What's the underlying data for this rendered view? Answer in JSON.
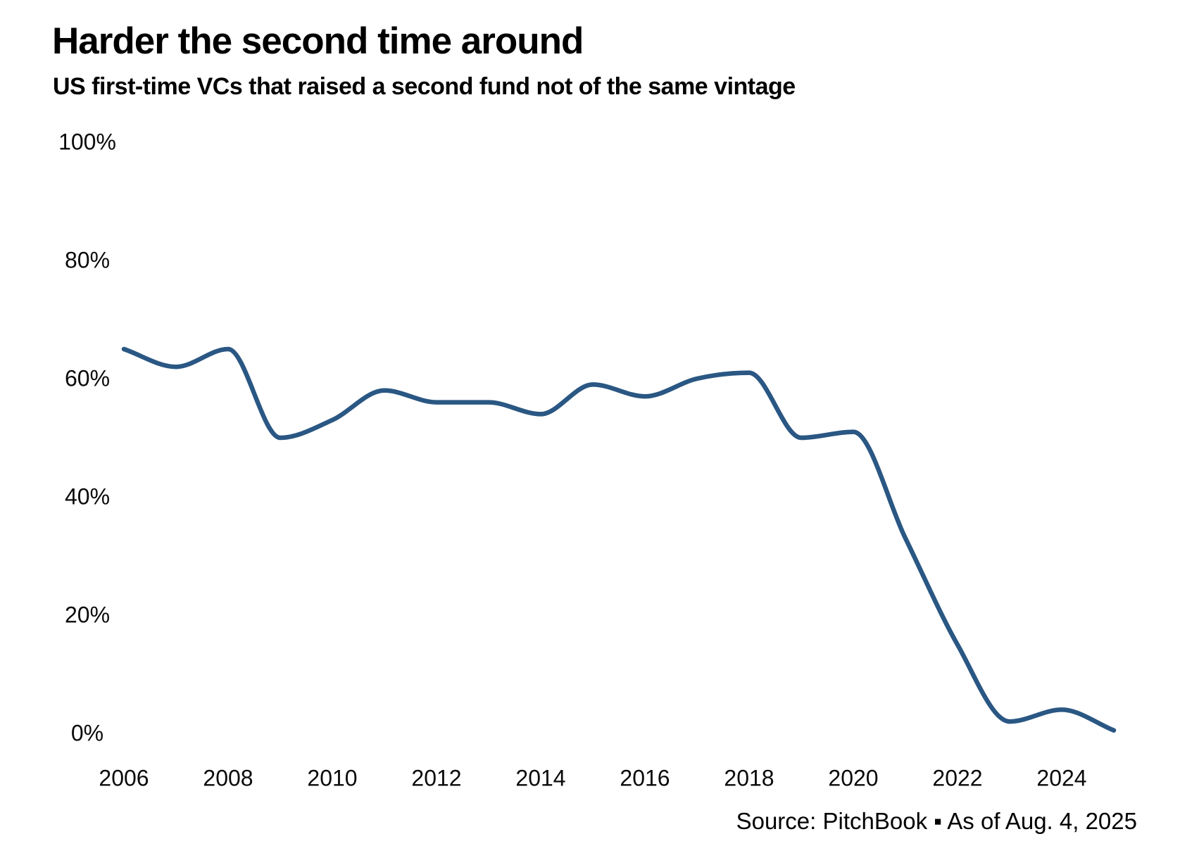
{
  "header": {
    "title": "Harder the second time around",
    "subtitle": "US first-time VCs that raised a second fund not of the same vintage"
  },
  "footer": {
    "source": "Source: PitchBook ▪ As of Aug. 4, 2025"
  },
  "chart_data": {
    "type": "line",
    "title": "Harder the second time around",
    "subtitle": "US first-time VCs that raised a second fund not of the same vintage",
    "x": [
      2006,
      2007,
      2008,
      2009,
      2010,
      2011,
      2012,
      2013,
      2014,
      2015,
      2016,
      2017,
      2018,
      2019,
      2020,
      2021,
      2022,
      2023,
      2024,
      2025
    ],
    "values": [
      65,
      62,
      65,
      50,
      53,
      58,
      56,
      56,
      54,
      59,
      57,
      60,
      61,
      50,
      51,
      33,
      15,
      2,
      4,
      0.5
    ],
    "unit": "%",
    "yticks": [
      100,
      80,
      60,
      40,
      20,
      0
    ],
    "xticks": [
      2006,
      2008,
      2010,
      2012,
      2014,
      2016,
      2018,
      2020,
      2022,
      2024
    ],
    "ylim": [
      0,
      100
    ],
    "xlim": [
      2006,
      2025
    ],
    "grid": false,
    "legend": false,
    "line_color": "#2a5783",
    "source": "Source: PitchBook ▪ As of Aug. 4, 2025"
  }
}
